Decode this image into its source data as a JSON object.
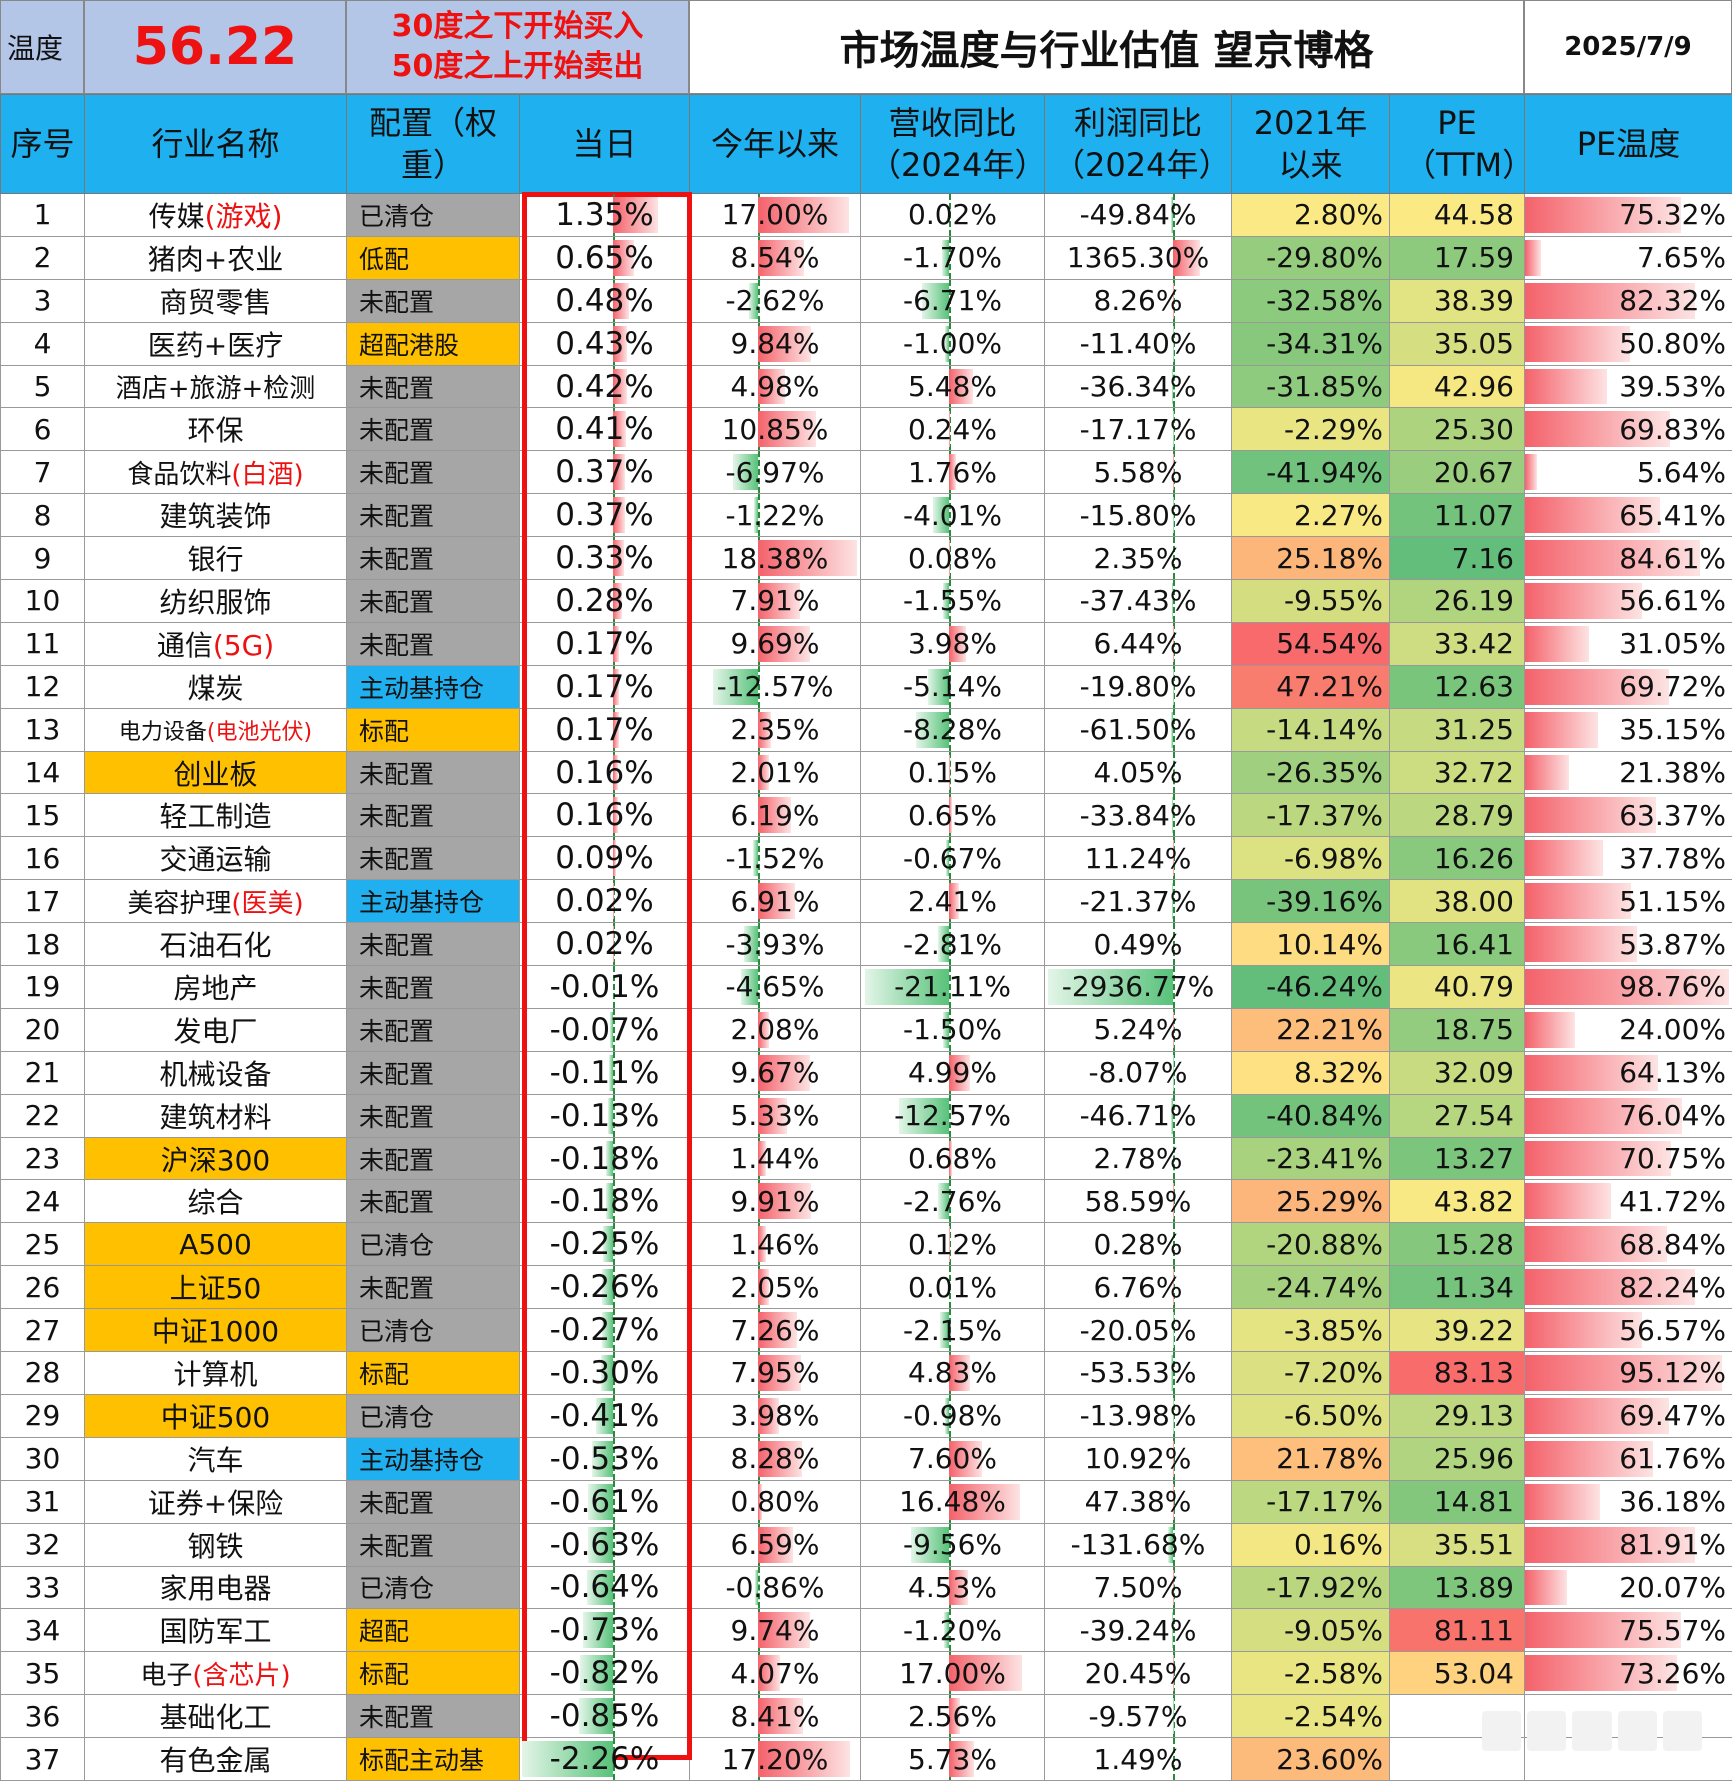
{
  "header": {
    "temp_label": "温度",
    "temp_value": "56.22",
    "rule_buy": "30度之下开始买入",
    "rule_sell": "50度之上开始卖出",
    "title": "市场温度与行业估值 望京博格",
    "date": "2025/7/9"
  },
  "columns": [
    "序号",
    "行业名称",
    "配置（权重）",
    "当日",
    "今年以来",
    "营收同比（2024年）",
    "利润同比（2024年）",
    "2021年以来",
    "PE（TTM）",
    "PE温度"
  ],
  "rows": [
    {
      "idx": "1",
      "name": "传媒",
      "name_hl": "(游戏)",
      "cfg": "已清仓",
      "cfg_type": "gray",
      "today": "1.35%",
      "ytd": "17.00%",
      "rev": "0.02%",
      "profit": "-49.84%",
      "since": "2.80%",
      "pe": "44.58",
      "pet": "75.32%"
    },
    {
      "idx": "2",
      "name": "猪肉+农业",
      "name_hl": "",
      "cfg": "低配",
      "cfg_type": "orange",
      "today": "0.65%",
      "ytd": "8.54%",
      "rev": "-1.70%",
      "profit": "1365.30%",
      "since": "-29.80%",
      "pe": "17.59",
      "pet": "7.65%"
    },
    {
      "idx": "3",
      "name": "商贸零售",
      "name_hl": "",
      "cfg": "未配置",
      "cfg_type": "gray",
      "today": "0.48%",
      "ytd": "-2.62%",
      "rev": "-6.71%",
      "profit": "8.26%",
      "since": "-32.58%",
      "pe": "38.39",
      "pet": "82.32%"
    },
    {
      "idx": "4",
      "name": "医药+医疗",
      "name_hl": "",
      "cfg": "超配港股",
      "cfg_type": "orange",
      "today": "0.43%",
      "ytd": "9.84%",
      "rev": "-1.00%",
      "profit": "-11.40%",
      "since": "-34.31%",
      "pe": "35.05",
      "pet": "50.80%"
    },
    {
      "idx": "5",
      "name": "酒店+旅游+检测",
      "name_hl": "",
      "cfg": "未配置",
      "cfg_type": "gray",
      "today": "0.42%",
      "ytd": "4.98%",
      "rev": "5.48%",
      "profit": "-36.34%",
      "since": "-31.85%",
      "pe": "42.96",
      "pet": "39.53%"
    },
    {
      "idx": "6",
      "name": "环保",
      "name_hl": "",
      "cfg": "未配置",
      "cfg_type": "gray",
      "today": "0.41%",
      "ytd": "10.85%",
      "rev": "0.24%",
      "profit": "-17.17%",
      "since": "-2.29%",
      "pe": "25.30",
      "pet": "69.83%"
    },
    {
      "idx": "7",
      "name": "食品饮料",
      "name_hl": "(白酒)",
      "cfg": "未配置",
      "cfg_type": "gray",
      "today": "0.37%",
      "ytd": "-6.97%",
      "rev": "1.76%",
      "profit": "5.58%",
      "since": "-41.94%",
      "pe": "20.67",
      "pet": "5.64%"
    },
    {
      "idx": "8",
      "name": "建筑装饰",
      "name_hl": "",
      "cfg": "未配置",
      "cfg_type": "gray",
      "today": "0.37%",
      "ytd": "-1.22%",
      "rev": "-4.01%",
      "profit": "-15.80%",
      "since": "2.27%",
      "pe": "11.07",
      "pet": "65.41%"
    },
    {
      "idx": "9",
      "name": "银行",
      "name_hl": "",
      "cfg": "未配置",
      "cfg_type": "gray",
      "today": "0.33%",
      "ytd": "18.38%",
      "rev": "0.08%",
      "profit": "2.35%",
      "since": "25.18%",
      "pe": "7.16",
      "pet": "84.61%"
    },
    {
      "idx": "10",
      "name": "纺织服饰",
      "name_hl": "",
      "cfg": "未配置",
      "cfg_type": "gray",
      "today": "0.28%",
      "ytd": "7.91%",
      "rev": "-1.55%",
      "profit": "-37.43%",
      "since": "-9.55%",
      "pe": "26.19",
      "pet": "56.61%"
    },
    {
      "idx": "11",
      "name": "通信",
      "name_hl": "(5G)",
      "cfg": "未配置",
      "cfg_type": "gray",
      "today": "0.17%",
      "ytd": "9.69%",
      "rev": "3.98%",
      "profit": "6.44%",
      "since": "54.54%",
      "pe": "33.42",
      "pet": "31.05%"
    },
    {
      "idx": "12",
      "name": "煤炭",
      "name_hl": "",
      "cfg": "主动基持仓",
      "cfg_type": "blue",
      "today": "0.17%",
      "ytd": "-12.57%",
      "rev": "-5.14%",
      "profit": "-19.80%",
      "since": "47.21%",
      "pe": "12.63",
      "pet": "69.72%"
    },
    {
      "idx": "13",
      "name": "电力设备",
      "name_hl": "(电池光伏)",
      "cfg": "标配",
      "cfg_type": "orange",
      "today": "0.17%",
      "ytd": "2.35%",
      "rev": "-8.28%",
      "profit": "-61.50%",
      "since": "-14.14%",
      "pe": "31.25",
      "pet": "35.15%"
    },
    {
      "idx": "14",
      "name": "创业板",
      "name_hl": "",
      "cfg": "未配置",
      "cfg_type": "gray",
      "today": "0.16%",
      "ytd": "2.01%",
      "rev": "0.15%",
      "profit": "4.05%",
      "since": "-26.35%",
      "pe": "32.72",
      "pet": "21.38%",
      "index": true
    },
    {
      "idx": "15",
      "name": "轻工制造",
      "name_hl": "",
      "cfg": "未配置",
      "cfg_type": "gray",
      "today": "0.16%",
      "ytd": "6.19%",
      "rev": "0.65%",
      "profit": "-33.84%",
      "since": "-17.37%",
      "pe": "28.79",
      "pet": "63.37%"
    },
    {
      "idx": "16",
      "name": "交通运输",
      "name_hl": "",
      "cfg": "未配置",
      "cfg_type": "gray",
      "today": "0.09%",
      "ytd": "-1.52%",
      "rev": "-0.67%",
      "profit": "11.24%",
      "since": "-6.98%",
      "pe": "16.26",
      "pet": "37.78%"
    },
    {
      "idx": "17",
      "name": "美容护理",
      "name_hl": "(医美)",
      "cfg": "主动基持仓",
      "cfg_type": "blue",
      "today": "0.02%",
      "ytd": "6.91%",
      "rev": "2.41%",
      "profit": "-21.37%",
      "since": "-39.16%",
      "pe": "38.00",
      "pet": "51.15%"
    },
    {
      "idx": "18",
      "name": "石油石化",
      "name_hl": "",
      "cfg": "未配置",
      "cfg_type": "gray",
      "today": "0.02%",
      "ytd": "-3.93%",
      "rev": "-2.81%",
      "profit": "0.49%",
      "since": "10.14%",
      "pe": "16.41",
      "pet": "53.87%"
    },
    {
      "idx": "19",
      "name": "房地产",
      "name_hl": "",
      "cfg": "未配置",
      "cfg_type": "gray",
      "today": "-0.01%",
      "ytd": "-4.65%",
      "rev": "-21.11%",
      "profit": "-2936.77%",
      "since": "-46.24%",
      "pe": "40.79",
      "pet": "98.76%"
    },
    {
      "idx": "20",
      "name": "发电厂",
      "name_hl": "",
      "cfg": "未配置",
      "cfg_type": "gray",
      "today": "-0.07%",
      "ytd": "2.08%",
      "rev": "-1.50%",
      "profit": "5.24%",
      "since": "22.21%",
      "pe": "18.75",
      "pet": "24.00%"
    },
    {
      "idx": "21",
      "name": "机械设备",
      "name_hl": "",
      "cfg": "未配置",
      "cfg_type": "gray",
      "today": "-0.11%",
      "ytd": "9.67%",
      "rev": "4.99%",
      "profit": "-8.07%",
      "since": "8.32%",
      "pe": "32.09",
      "pet": "64.13%"
    },
    {
      "idx": "22",
      "name": "建筑材料",
      "name_hl": "",
      "cfg": "未配置",
      "cfg_type": "gray",
      "today": "-0.13%",
      "ytd": "5.33%",
      "rev": "-12.57%",
      "profit": "-46.71%",
      "since": "-40.84%",
      "pe": "27.54",
      "pet": "76.04%"
    },
    {
      "idx": "23",
      "name": "沪深300",
      "name_hl": "",
      "cfg": "未配置",
      "cfg_type": "gray",
      "today": "-0.18%",
      "ytd": "1.44%",
      "rev": "0.68%",
      "profit": "2.78%",
      "since": "-23.41%",
      "pe": "13.27",
      "pet": "70.75%",
      "index": true
    },
    {
      "idx": "24",
      "name": "综合",
      "name_hl": "",
      "cfg": "未配置",
      "cfg_type": "gray",
      "today": "-0.18%",
      "ytd": "9.91%",
      "rev": "-2.76%",
      "profit": "58.59%",
      "since": "25.29%",
      "pe": "43.82",
      "pet": "41.72%"
    },
    {
      "idx": "25",
      "name": "A500",
      "name_hl": "",
      "cfg": "已清仓",
      "cfg_type": "gray",
      "today": "-0.25%",
      "ytd": "1.46%",
      "rev": "0.12%",
      "profit": "0.28%",
      "since": "-20.88%",
      "pe": "15.28",
      "pet": "68.84%",
      "index": true
    },
    {
      "idx": "26",
      "name": "上证50",
      "name_hl": "",
      "cfg": "未配置",
      "cfg_type": "gray",
      "today": "-0.26%",
      "ytd": "2.05%",
      "rev": "0.01%",
      "profit": "6.76%",
      "since": "-24.74%",
      "pe": "11.34",
      "pet": "82.24%",
      "index": true
    },
    {
      "idx": "27",
      "name": "中证1000",
      "name_hl": "",
      "cfg": "已清仓",
      "cfg_type": "gray",
      "today": "-0.27%",
      "ytd": "7.26%",
      "rev": "-2.15%",
      "profit": "-20.05%",
      "since": "-3.85%",
      "pe": "39.22",
      "pet": "56.57%",
      "index": true
    },
    {
      "idx": "28",
      "name": "计算机",
      "name_hl": "",
      "cfg": "标配",
      "cfg_type": "orange",
      "today": "-0.30%",
      "ytd": "7.95%",
      "rev": "4.83%",
      "profit": "-53.53%",
      "since": "-7.20%",
      "pe": "83.13",
      "pet": "95.12%"
    },
    {
      "idx": "29",
      "name": "中证500",
      "name_hl": "",
      "cfg": "已清仓",
      "cfg_type": "gray",
      "today": "-0.41%",
      "ytd": "3.98%",
      "rev": "-0.98%",
      "profit": "-13.98%",
      "since": "-6.50%",
      "pe": "29.13",
      "pet": "69.47%",
      "index": true
    },
    {
      "idx": "30",
      "name": "汽车",
      "name_hl": "",
      "cfg": "主动基持仓",
      "cfg_type": "blue",
      "today": "-0.53%",
      "ytd": "8.28%",
      "rev": "7.60%",
      "profit": "10.92%",
      "since": "21.78%",
      "pe": "25.96",
      "pet": "61.76%"
    },
    {
      "idx": "31",
      "name": "证券+保险",
      "name_hl": "",
      "cfg": "未配置",
      "cfg_type": "gray",
      "today": "-0.61%",
      "ytd": "0.80%",
      "rev": "16.48%",
      "profit": "47.38%",
      "since": "-17.17%",
      "pe": "14.81",
      "pet": "36.18%"
    },
    {
      "idx": "32",
      "name": "钢铁",
      "name_hl": "",
      "cfg": "未配置",
      "cfg_type": "gray",
      "today": "-0.63%",
      "ytd": "6.59%",
      "rev": "-9.56%",
      "profit": "-131.68%",
      "since": "0.16%",
      "pe": "35.51",
      "pet": "81.91%"
    },
    {
      "idx": "33",
      "name": "家用电器",
      "name_hl": "",
      "cfg": "已清仓",
      "cfg_type": "gray",
      "today": "-0.64%",
      "ytd": "-0.86%",
      "rev": "4.53%",
      "profit": "7.50%",
      "since": "-17.92%",
      "pe": "13.89",
      "pet": "20.07%"
    },
    {
      "idx": "34",
      "name": "国防军工",
      "name_hl": "",
      "cfg": "超配",
      "cfg_type": "orange",
      "today": "-0.73%",
      "ytd": "9.74%",
      "rev": "-1.20%",
      "profit": "-39.24%",
      "since": "-9.05%",
      "pe": "81.11",
      "pet": "75.57%"
    },
    {
      "idx": "35",
      "name": "电子",
      "name_hl": "(含芯片)",
      "cfg": "标配",
      "cfg_type": "orange",
      "today": "-0.82%",
      "ytd": "4.07%",
      "rev": "17.00%",
      "profit": "20.45%",
      "since": "-2.58%",
      "pe": "53.04",
      "pet": "73.26%"
    },
    {
      "idx": "36",
      "name": "基础化工",
      "name_hl": "",
      "cfg": "未配置",
      "cfg_type": "gray",
      "today": "-0.85%",
      "ytd": "8.41%",
      "rev": "2.56%",
      "profit": "-9.57%",
      "since": "-2.54%",
      "pe": "",
      "pet": ""
    },
    {
      "idx": "37",
      "name": "有色金属",
      "name_hl": "",
      "cfg": "标配主动基",
      "cfg_type": "orange",
      "today": "-2.26%",
      "ytd": "17.20%",
      "rev": "5.73%",
      "profit": "1.49%",
      "since": "23.60%",
      "pe": "",
      "pet": ""
    }
  ],
  "colors": {
    "header_bg": "#1fb0f0",
    "banner_bg": "#b4c6e7",
    "accent_red": "#ee1111",
    "cfg_gray": "#a6a6a6",
    "cfg_orange": "#ffc000",
    "cfg_blue": "#20b0f0",
    "bar_pos": "#f4626b",
    "bar_neg": "#58c27a"
  }
}
